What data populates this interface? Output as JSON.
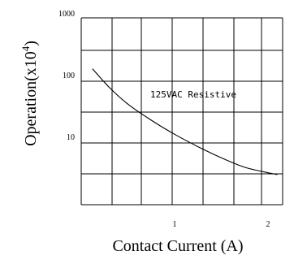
{
  "chart_data": {
    "type": "line",
    "title": "",
    "xlabel": "Contact Current (A)",
    "ylabel": "Operation(x10",
    "ylabel_exponent": "4",
    "ylabel_close": ")",
    "y_scale": "log",
    "x_ticks": [
      "1",
      "2"
    ],
    "y_ticks": [
      "1000",
      "100",
      "10"
    ],
    "grid": true,
    "annotation": "125VAC Resistive",
    "series": [
      {
        "x": [
          0.12,
          0.3,
          0.5,
          0.75,
          1.0,
          1.25,
          1.5,
          1.75,
          2.0,
          2.1
        ],
        "y": [
          150,
          75,
          40,
          22,
          13,
          8.2,
          5.4,
          3.8,
          3.1,
          2.9
        ]
      }
    ]
  }
}
